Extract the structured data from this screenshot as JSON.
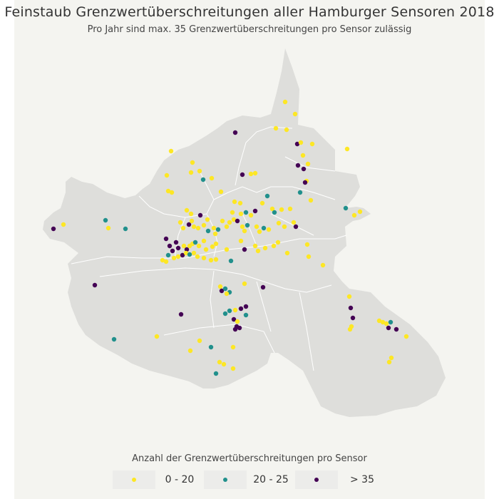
{
  "title": "Feinstaub Grenzwertüberschreitungen aller Hamburger Sensoren 2018",
  "subtitle": "Pro Jahr sind max. 35 Grenzwertüberschreitungen pro Sensor zulässig",
  "legend": {
    "title": "Anzahl der Grenzwertüberschreitungen pro Sensor",
    "items": [
      {
        "label": "0 - 20",
        "color": "#fde725"
      },
      {
        "label": "20 - 25",
        "color": "#21908c"
      },
      {
        "label": "> 35",
        "color": "#440154"
      }
    ]
  },
  "colors": {
    "background": "#f4f4f0",
    "land": "#dededb",
    "district_border": "#ffffff"
  }
}
